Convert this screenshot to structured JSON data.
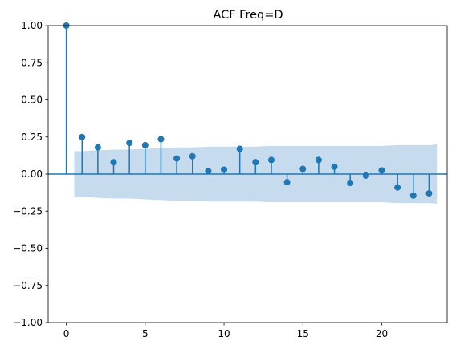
{
  "chart_data": {
    "type": "stem",
    "title": "ACF Freq=D",
    "xlabel": "",
    "ylabel": "",
    "xlim": [
      -1.15,
      24.15
    ],
    "ylim": [
      -1.0,
      1.0
    ],
    "x_ticks": [
      0,
      5,
      10,
      15,
      20
    ],
    "y_ticks": [
      -1.0,
      -0.75,
      -0.5,
      -0.25,
      0.0,
      0.25,
      0.5,
      0.75,
      1.0
    ],
    "x_tick_labels": [
      "0",
      "5",
      "10",
      "15",
      "20"
    ],
    "y_tick_labels": [
      "−1.00",
      "−0.75",
      "−0.50",
      "−0.25",
      "0.00",
      "0.25",
      "0.50",
      "0.75",
      "1.00"
    ],
    "lags": [
      0,
      1,
      2,
      3,
      4,
      5,
      6,
      7,
      8,
      9,
      10,
      11,
      12,
      13,
      14,
      15,
      16,
      17,
      18,
      19,
      20,
      21,
      22,
      23
    ],
    "acf": [
      1.0,
      0.25,
      0.18,
      0.08,
      0.21,
      0.195,
      0.235,
      0.105,
      0.12,
      0.02,
      0.03,
      0.17,
      0.08,
      0.095,
      -0.055,
      0.035,
      0.095,
      0.05,
      -0.06,
      -0.01,
      0.025,
      -0.09,
      -0.145,
      -0.13
    ],
    "confidence_band": {
      "lags": [
        0.5,
        1,
        2,
        3,
        4,
        5,
        6,
        7,
        8,
        9,
        10,
        11,
        12,
        13,
        14,
        15,
        16,
        17,
        18,
        19,
        20,
        21,
        22,
        23,
        23.5
      ],
      "upper": [
        0.155,
        0.155,
        0.16,
        0.165,
        0.165,
        0.17,
        0.175,
        0.18,
        0.18,
        0.185,
        0.185,
        0.185,
        0.185,
        0.19,
        0.19,
        0.19,
        0.19,
        0.19,
        0.19,
        0.19,
        0.19,
        0.195,
        0.195,
        0.195,
        0.2
      ],
      "lower": [
        -0.155,
        -0.155,
        -0.16,
        -0.165,
        -0.165,
        -0.17,
        -0.175,
        -0.18,
        -0.18,
        -0.185,
        -0.185,
        -0.185,
        -0.185,
        -0.19,
        -0.19,
        -0.19,
        -0.19,
        -0.19,
        -0.19,
        -0.19,
        -0.19,
        -0.195,
        -0.195,
        -0.195,
        -0.2
      ]
    },
    "grid": false,
    "colors": {
      "marker": "#1f77b4",
      "band": "#c6dbee",
      "zero_line": "#1f77b4",
      "axes": "#000000"
    }
  }
}
